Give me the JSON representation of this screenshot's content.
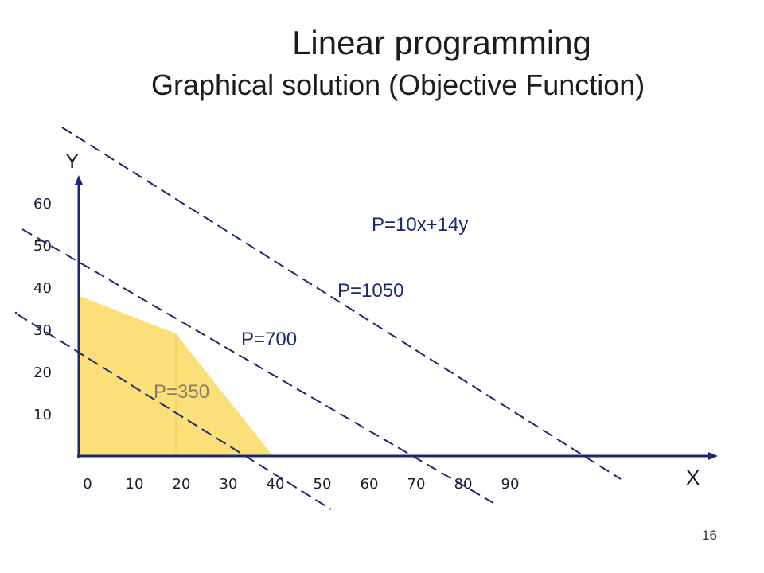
{
  "slide": {
    "title": "Linear programming",
    "subtitle": "Graphical solution (Objective Function)",
    "page_number": "16"
  },
  "colors": {
    "feasible_fill": "#fbe07a",
    "dashed_line": "#1a2a6c",
    "axis": "#1a2a6c",
    "label_text": "#1a2a6c",
    "p350_text": "#8a7a6a"
  },
  "chart_data": {
    "type": "area",
    "title": "",
    "xlabel": "X",
    "ylabel": "Y",
    "xlim": [
      0,
      90
    ],
    "ylim": [
      0,
      60
    ],
    "x_ticks": [
      "0",
      "10",
      "20",
      "30",
      "40",
      "50",
      "60",
      "70",
      "80",
      "90"
    ],
    "y_ticks": [
      "10",
      "20",
      "30",
      "40",
      "50",
      "60"
    ],
    "feasible_region": [
      [
        0,
        0
      ],
      [
        0,
        38
      ],
      [
        20,
        29
      ],
      [
        40,
        0
      ]
    ],
    "objective": "P=10x+14y",
    "iso_profit_lines": [
      {
        "label": "P=350",
        "value": 350
      },
      {
        "label": "P=700",
        "value": 700
      },
      {
        "label": "P=1050",
        "value": 1050
      }
    ]
  }
}
